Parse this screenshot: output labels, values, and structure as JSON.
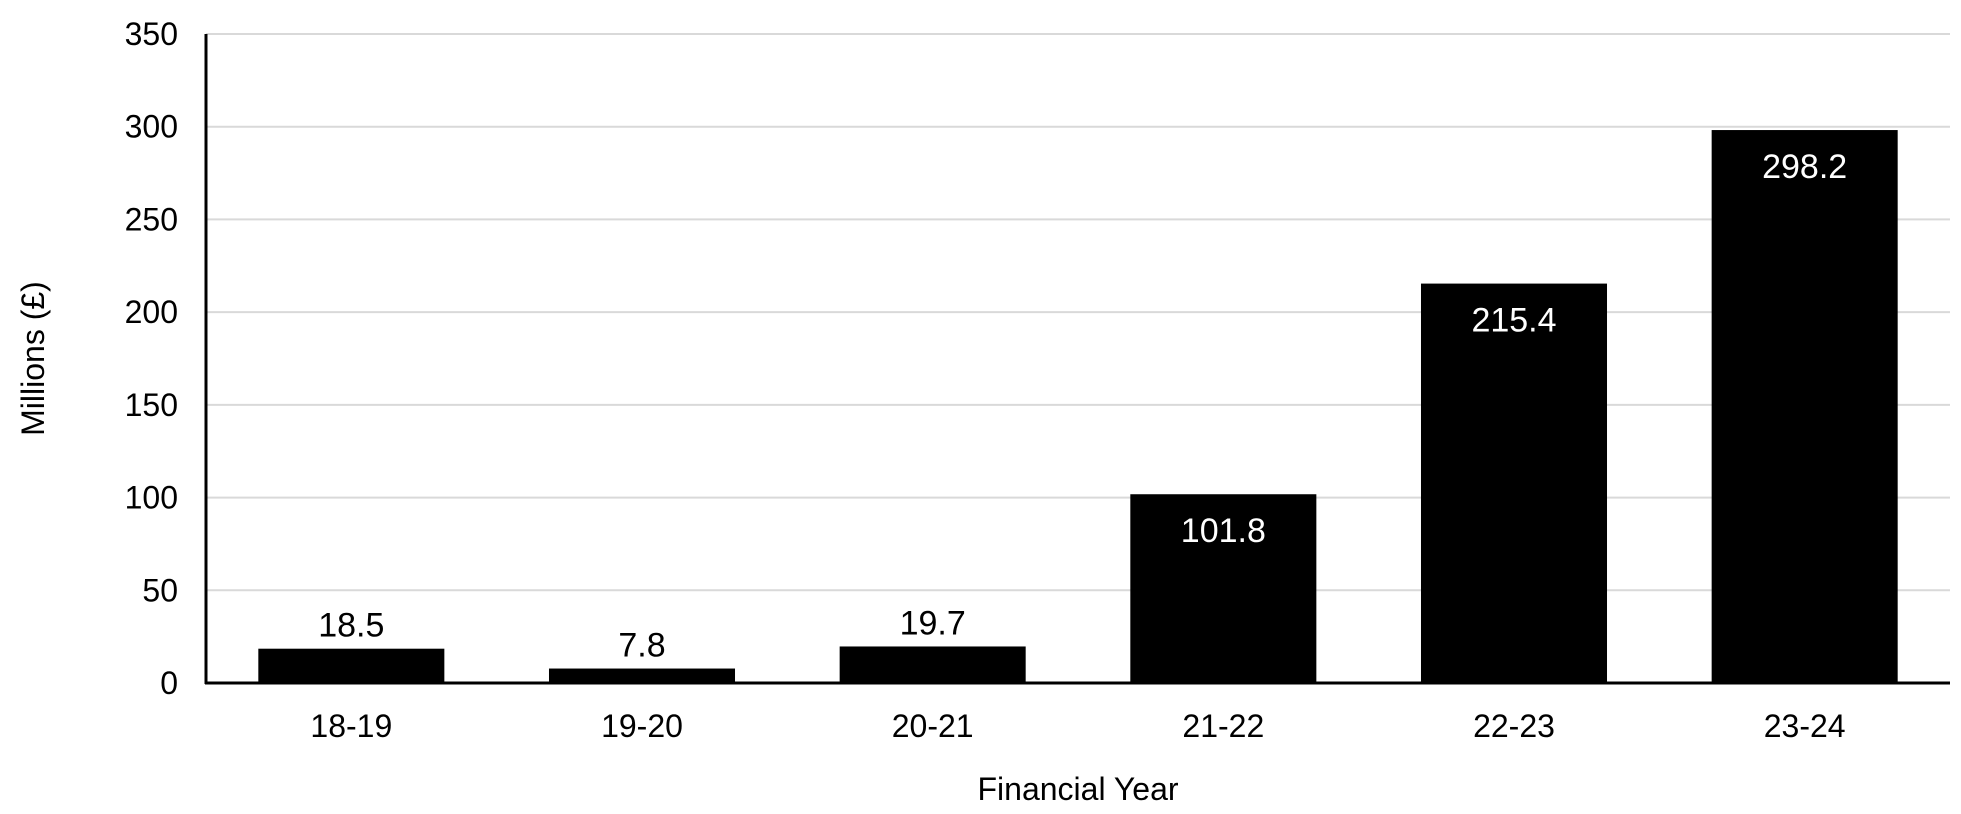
{
  "chart_data": {
    "type": "bar",
    "categories": [
      "18-19",
      "19-20",
      "20-21",
      "21-22",
      "22-23",
      "23-24"
    ],
    "values": [
      18.5,
      7.8,
      19.7,
      101.8,
      215.4,
      298.2
    ],
    "value_labels": [
      "18.5",
      "7.8",
      "19.7",
      "101.8",
      "215.4",
      "298.2"
    ],
    "title": "",
    "xlabel": "Financial Year",
    "ylabel": "Millions (£)",
    "ylim": [
      0,
      350
    ],
    "yticks": [
      0,
      50,
      100,
      150,
      200,
      250,
      300,
      350
    ],
    "ytick_labels": [
      "0",
      "50",
      "100",
      "150",
      "200",
      "250",
      "300",
      "350"
    ],
    "grid": true,
    "legend": "none",
    "colors": {
      "bar": "#000000",
      "grid": "#d9d9d9",
      "axis": "#000000",
      "label_inside": "#ffffff",
      "label_outside": "#000000"
    }
  }
}
